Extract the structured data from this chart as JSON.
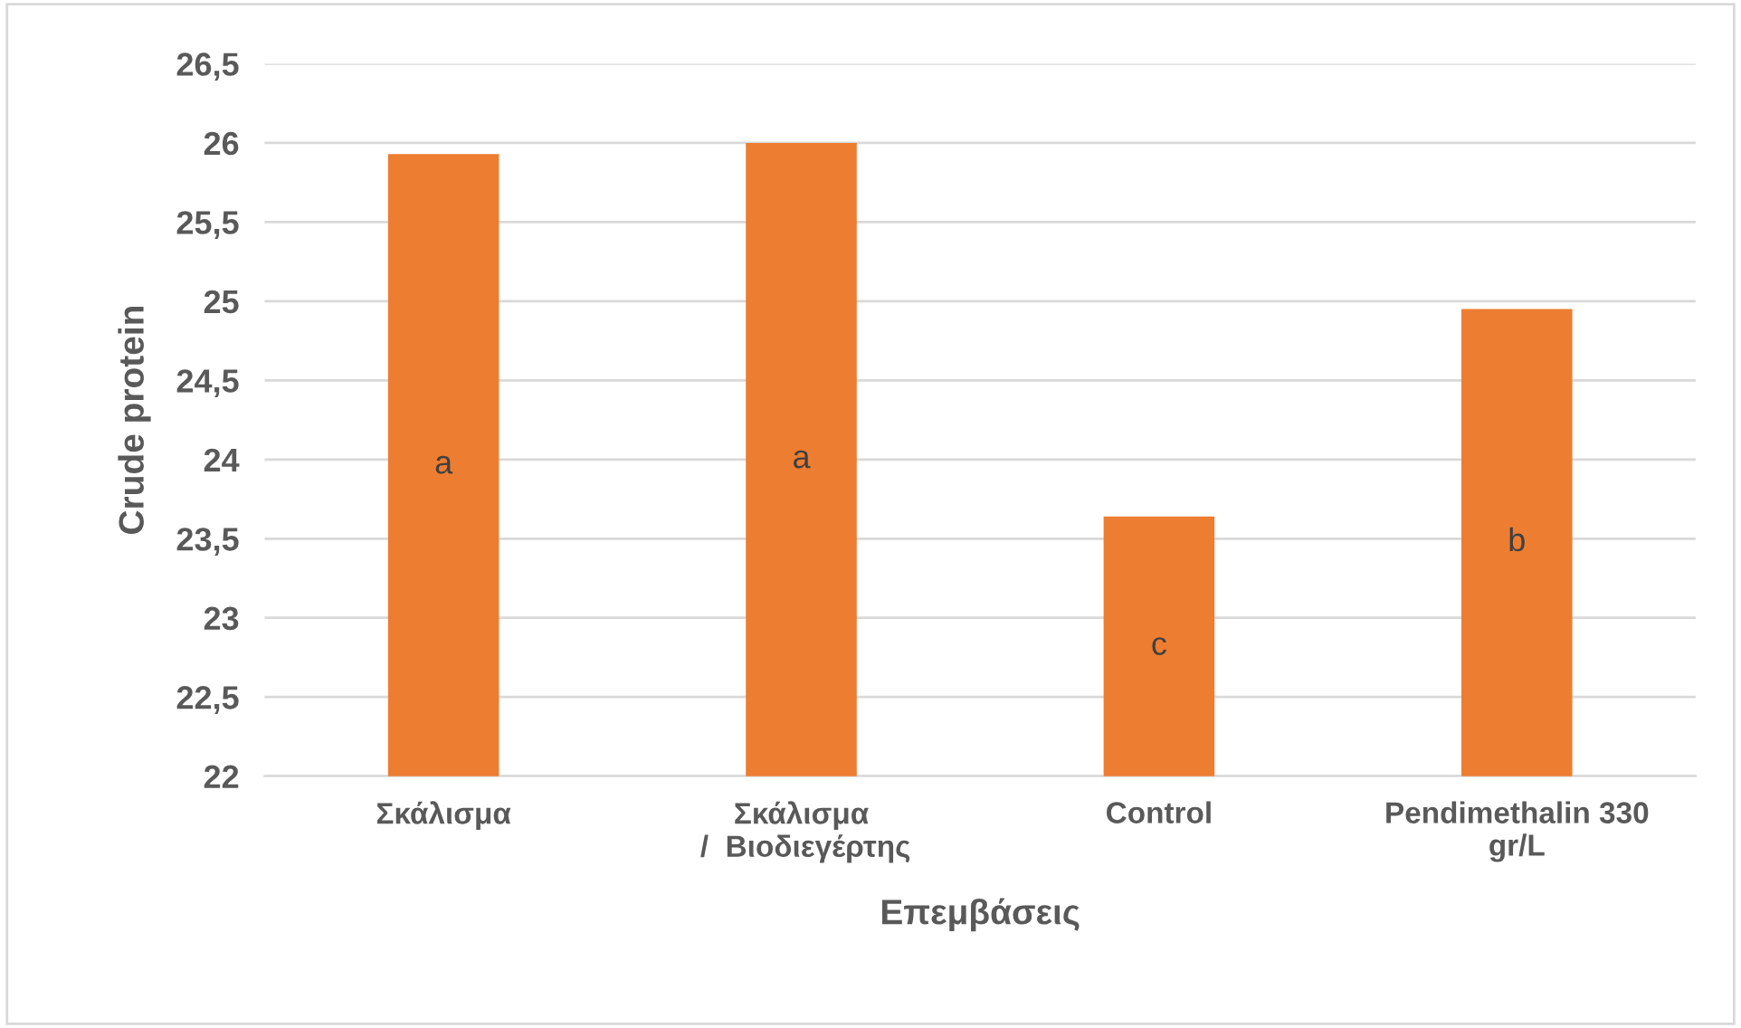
{
  "chart_data": {
    "type": "bar",
    "xlabel": "Επεμβάσεις",
    "ylabel": "Crude protein",
    "categories": [
      "Σκάλισμα",
      "Σκάλισμα\n /  Βιοδιεγέρτης",
      "Control",
      "Pendimethalin 330\ngr/L"
    ],
    "values": [
      25.93,
      26.0,
      23.64,
      24.95
    ],
    "color": "#ed7d31",
    "ylim": [
      22,
      26.5
    ],
    "yticks": [
      22,
      {
        "value": 22.5,
        "label": "22,5"
      },
      23,
      {
        "value": 23.5,
        "label": "23,5"
      },
      24,
      {
        "value": 24.5,
        "label": "24,5"
      },
      25,
      {
        "value": 25.5,
        "label": "25,5"
      },
      26,
      {
        "value": 26.5,
        "label": "26,5"
      }
    ],
    "grid": "y",
    "annotations": [
      "a",
      "a",
      "c",
      "b"
    ]
  }
}
